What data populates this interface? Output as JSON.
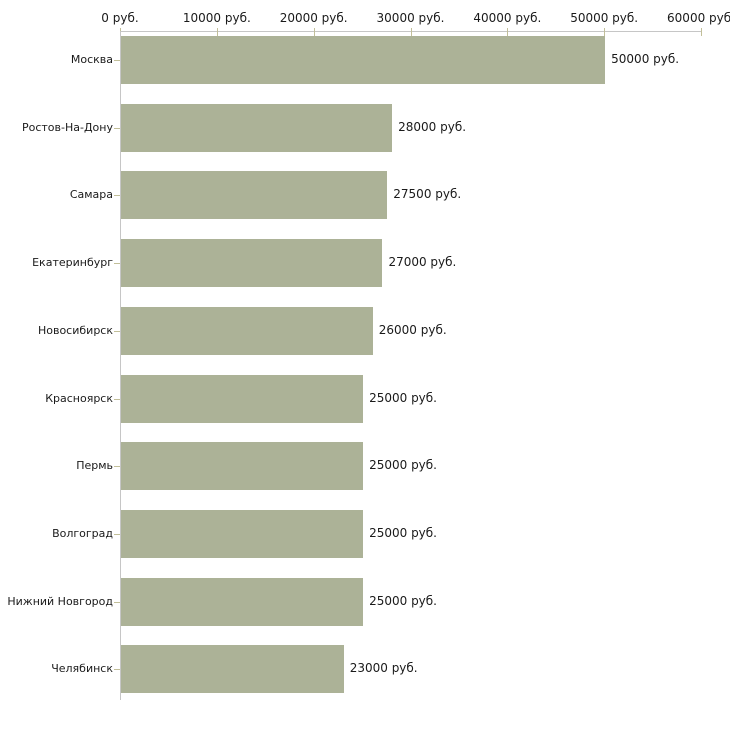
{
  "chart_data": {
    "type": "bar",
    "orientation": "horizontal",
    "title": "",
    "xlabel": "",
    "ylabel": "",
    "categories": [
      "Москва",
      "Ростов-На-Дону",
      "Самара",
      "Екатеринбург",
      "Новосибирск",
      "Красноярск",
      "Пермь",
      "Волгоград",
      "Нижний Новгород",
      "Челябинск"
    ],
    "values": [
      50000,
      28000,
      27500,
      27000,
      26000,
      25000,
      25000,
      25000,
      25000,
      23000
    ],
    "value_labels": [
      "50000 руб.",
      "28000 руб.",
      "27500 руб.",
      "27000 руб.",
      "26000 руб.",
      "25000 руб.",
      "25000 руб.",
      "25000 руб.",
      "25000 руб.",
      "23000 руб."
    ],
    "x_ticks": [
      0,
      10000,
      20000,
      30000,
      40000,
      50000,
      60000
    ],
    "x_tick_labels": [
      "0 руб.",
      "10000 руб.",
      "20000 руб.",
      "30000 руб.",
      "40000 руб.",
      "50000 руб.",
      "60000 руб."
    ],
    "xlim": [
      0,
      60000
    ],
    "unit": "руб.",
    "grid": false,
    "legend": false,
    "bar_color": "#acb297"
  },
  "colors": {
    "background": "#ffffff",
    "bar": "#acb297",
    "axis_line": "#c6c6c6",
    "tick_mark": "#c2bf99",
    "text": "#1a1a1a"
  }
}
